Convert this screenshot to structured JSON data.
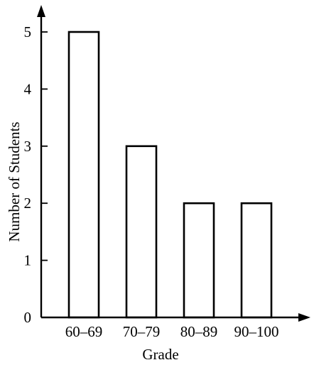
{
  "chart_data": {
    "type": "bar",
    "title": "",
    "xlabel": "Grade",
    "ylabel": "Number of Students",
    "categories": [
      "60–69",
      "70–79",
      "80–89",
      "90–100"
    ],
    "values": [
      5,
      3,
      2,
      2
    ],
    "yticks": [
      "0",
      "1",
      "2",
      "3",
      "4",
      "5"
    ],
    "ylim": [
      0,
      5
    ],
    "grid": false,
    "legend": "none",
    "colors": {
      "bar_fill": "#ffffff",
      "bar_stroke": "#000000",
      "axis": "#000000"
    }
  }
}
